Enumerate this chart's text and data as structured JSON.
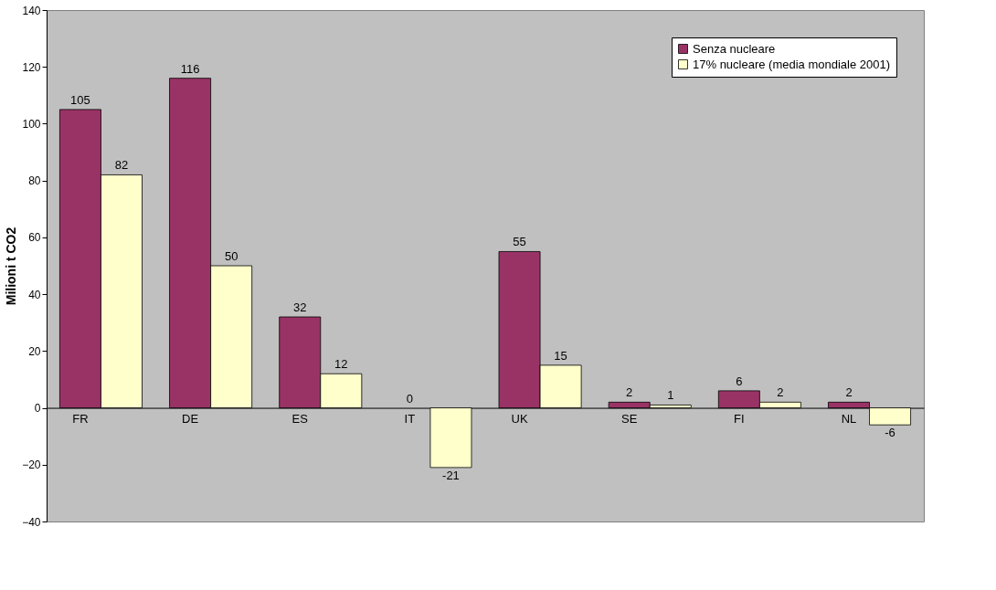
{
  "chart_data": {
    "type": "bar",
    "ylabel": "Milioni t CO2",
    "categories": [
      "FR",
      "DE",
      "ES",
      "IT",
      "UK",
      "SE",
      "FI",
      "NL"
    ],
    "series": [
      {
        "name": "Senza nucleare",
        "color": "#993366",
        "values": [
          105,
          116,
          32,
          0,
          55,
          2,
          6,
          2
        ]
      },
      {
        "name": "17% nucleare (media mondiale 2001)",
        "color": "#ffffcc",
        "values": [
          82,
          50,
          12,
          -21,
          15,
          1,
          2,
          -6
        ]
      }
    ],
    "ylim": [
      -40,
      140
    ],
    "yticks": [
      -40,
      -20,
      0,
      20,
      40,
      60,
      80,
      100,
      120,
      140
    ],
    "data_labels": true,
    "grid": false,
    "legend": "top right"
  }
}
